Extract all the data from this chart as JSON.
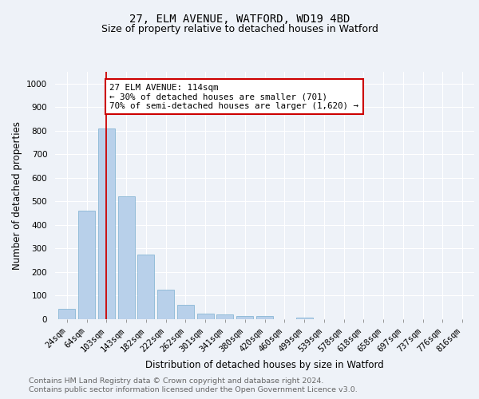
{
  "title1": "27, ELM AVENUE, WATFORD, WD19 4BD",
  "title2": "Size of property relative to detached houses in Watford",
  "xlabel": "Distribution of detached houses by size in Watford",
  "ylabel": "Number of detached properties",
  "categories": [
    "24sqm",
    "64sqm",
    "103sqm",
    "143sqm",
    "182sqm",
    "222sqm",
    "262sqm",
    "301sqm",
    "341sqm",
    "380sqm",
    "420sqm",
    "460sqm",
    "499sqm",
    "539sqm",
    "578sqm",
    "618sqm",
    "658sqm",
    "697sqm",
    "737sqm",
    "776sqm",
    "816sqm"
  ],
  "values": [
    45,
    460,
    810,
    520,
    275,
    125,
    60,
    25,
    22,
    12,
    12,
    0,
    8,
    0,
    0,
    0,
    0,
    0,
    0,
    0,
    0
  ],
  "bar_color": "#b8d0ea",
  "bar_edge_color": "#7aaecf",
  "vline_x_index": 2,
  "vline_color": "#cc0000",
  "annotation_text": "27 ELM AVENUE: 114sqm\n← 30% of detached houses are smaller (701)\n70% of semi-detached houses are larger (1,620) →",
  "annotation_box_facecolor": "#ffffff",
  "annotation_box_edgecolor": "#cc0000",
  "ylim": [
    0,
    1050
  ],
  "yticks": [
    0,
    100,
    200,
    300,
    400,
    500,
    600,
    700,
    800,
    900,
    1000
  ],
  "footer_line1": "Contains HM Land Registry data © Crown copyright and database right 2024.",
  "footer_line2": "Contains public sector information licensed under the Open Government Licence v3.0.",
  "bg_color": "#eef2f8",
  "grid_color": "#ffffff",
  "title1_fontsize": 10,
  "title2_fontsize": 9,
  "axis_label_fontsize": 8.5,
  "tick_fontsize": 7.5,
  "annotation_fontsize": 7.8,
  "footer_fontsize": 6.8
}
